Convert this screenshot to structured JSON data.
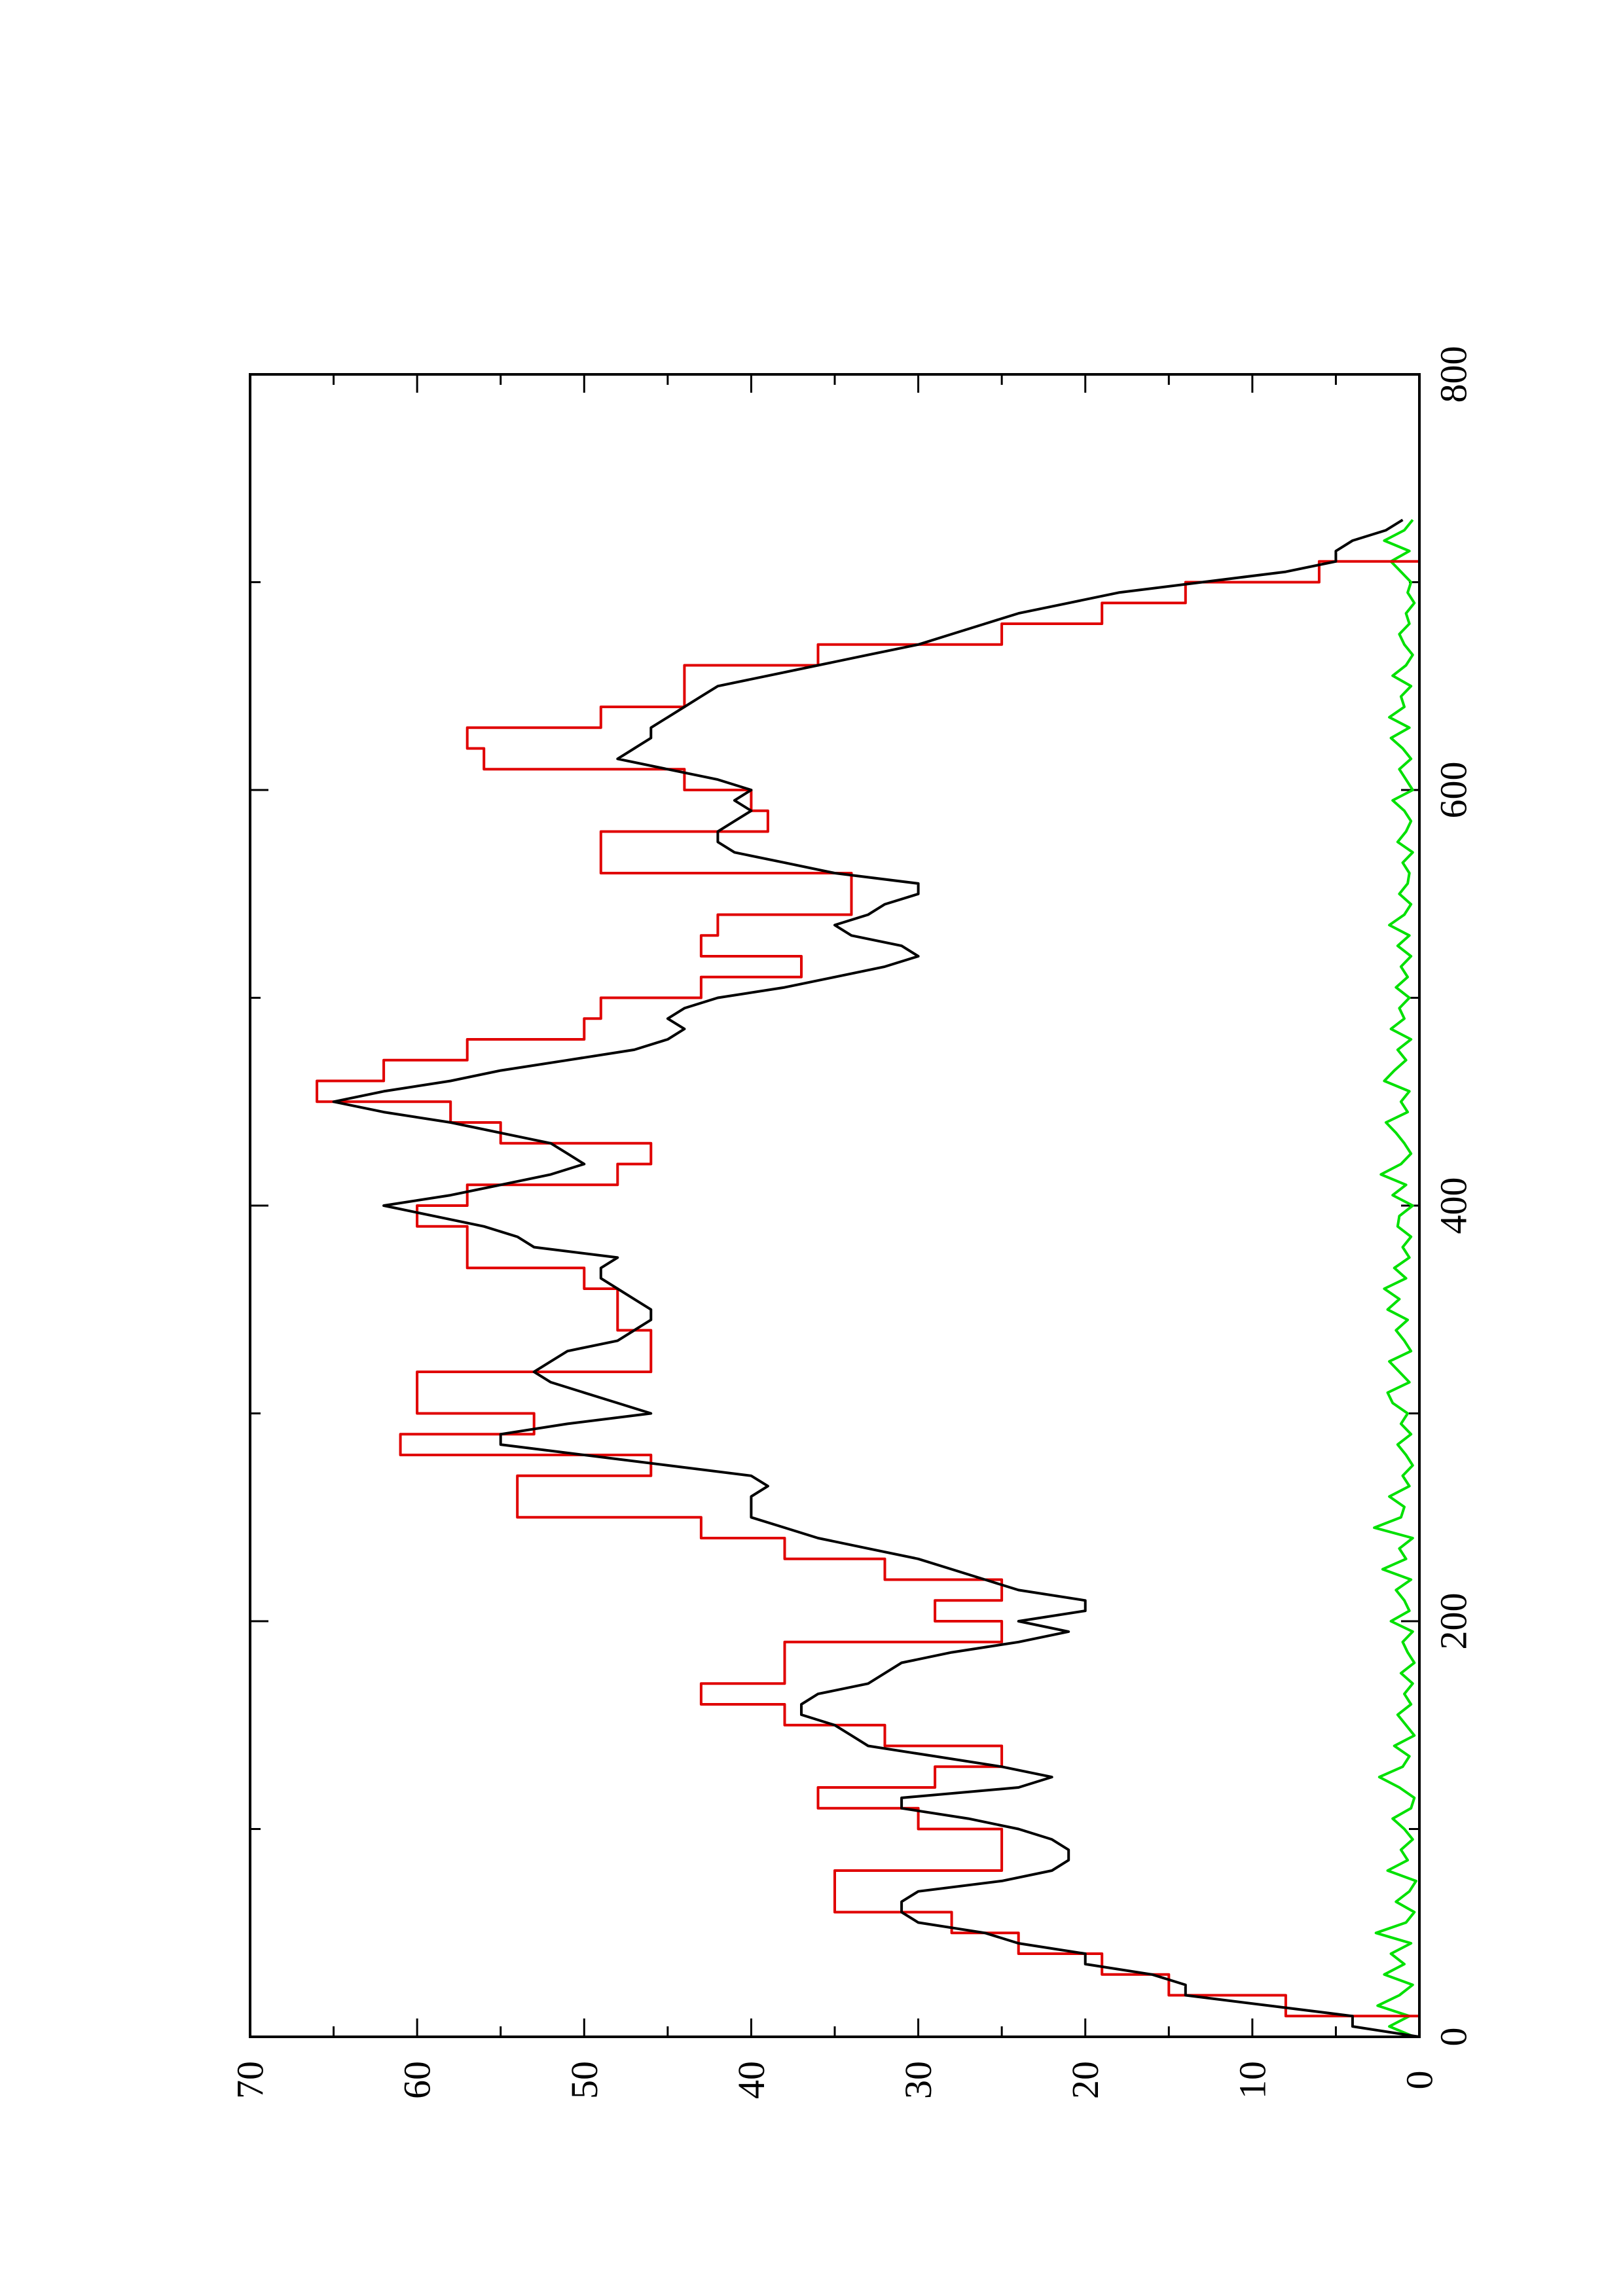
{
  "chart_data": {
    "type": "line",
    "orientation": "rotated-90-clockwise",
    "title": "",
    "xlabel": "",
    "ylabel": "",
    "xlim": [
      0,
      800
    ],
    "ylim": [
      0,
      70
    ],
    "xticks": [
      0,
      200,
      400,
      600,
      800
    ],
    "xtick_labels": [
      "0",
      "200",
      "400",
      "600",
      "800"
    ],
    "yticks": [
      0,
      10,
      20,
      30,
      40,
      50,
      60,
      70
    ],
    "ytick_labels": [
      "0",
      "10",
      "20",
      "30",
      "40",
      "50",
      "60",
      "70"
    ],
    "grid": false,
    "legend": "none",
    "series": [
      {
        "color": "#000000",
        "style": "line",
        "x": [
          0,
          5,
          10,
          15,
          20,
          25,
          30,
          35,
          40,
          45,
          50,
          55,
          60,
          65,
          70,
          75,
          80,
          85,
          90,
          95,
          100,
          105,
          110,
          115,
          120,
          125,
          130,
          135,
          140,
          145,
          150,
          155,
          160,
          165,
          170,
          175,
          180,
          185,
          190,
          195,
          200,
          205,
          210,
          215,
          220,
          225,
          230,
          235,
          240,
          245,
          250,
          255,
          260,
          265,
          270,
          275,
          280,
          285,
          290,
          295,
          300,
          305,
          310,
          315,
          320,
          325,
          330,
          335,
          340,
          345,
          350,
          355,
          360,
          365,
          370,
          375,
          380,
          385,
          390,
          395,
          400,
          405,
          410,
          415,
          420,
          425,
          430,
          435,
          440,
          445,
          450,
          455,
          460,
          465,
          470,
          475,
          480,
          485,
          490,
          495,
          500,
          505,
          510,
          515,
          520,
          525,
          530,
          535,
          540,
          545,
          550,
          555,
          560,
          565,
          570,
          575,
          580,
          585,
          590,
          595,
          600,
          605,
          610,
          615,
          620,
          625,
          630,
          635,
          640,
          645,
          650,
          655,
          660,
          665,
          670,
          675,
          680,
          685,
          690,
          695,
          700,
          705,
          710,
          715,
          720,
          725,
          730
        ],
        "y": [
          0,
          4,
          4,
          9,
          14,
          14,
          16,
          20,
          20,
          24,
          26,
          30,
          31,
          31,
          30,
          25,
          22,
          21,
          21,
          22,
          24,
          27,
          31,
          31,
          24,
          22,
          25,
          29,
          33,
          34,
          35,
          37,
          37,
          36,
          33,
          32,
          31,
          28,
          24,
          21,
          24,
          20,
          20,
          24,
          26,
          28,
          30,
          33,
          36,
          38,
          40,
          40,
          40,
          39,
          40,
          45,
          50,
          55,
          55,
          51,
          46,
          48,
          50,
          52,
          53,
          52,
          51,
          48,
          47,
          46,
          46,
          47,
          48,
          49,
          49,
          48,
          53,
          54,
          56,
          59,
          62,
          58,
          55,
          52,
          50,
          51,
          52,
          55,
          58,
          62,
          65,
          62,
          58,
          55,
          51,
          47,
          45,
          44,
          45,
          44,
          42,
          38,
          35,
          32,
          30,
          31,
          34,
          35,
          33,
          32,
          30,
          30,
          35,
          38,
          41,
          42,
          42,
          41,
          40,
          41,
          40,
          42,
          45,
          48,
          47,
          46,
          46,
          45,
          44,
          43,
          42,
          39,
          36,
          33,
          30,
          28,
          26,
          24,
          21,
          18,
          13,
          8,
          5,
          5,
          4,
          2,
          1
        ]
      },
      {
        "color": "#e00000",
        "style": "step",
        "x": [
          0,
          10,
          20,
          30,
          40,
          50,
          60,
          70,
          80,
          90,
          100,
          110,
          120,
          130,
          140,
          150,
          160,
          170,
          180,
          190,
          200,
          210,
          220,
          230,
          240,
          250,
          260,
          270,
          280,
          290,
          300,
          310,
          320,
          330,
          340,
          350,
          360,
          370,
          380,
          390,
          400,
          410,
          420,
          430,
          440,
          450,
          460,
          470,
          480,
          490,
          500,
          510,
          520,
          530,
          540,
          550,
          560,
          570,
          580,
          590,
          600,
          610,
          620,
          630,
          640,
          650,
          660,
          670,
          680,
          690,
          700,
          710
        ],
        "y": [
          0,
          8,
          15,
          19,
          24,
          28,
          35,
          35,
          25,
          25,
          30,
          36,
          29,
          25,
          32,
          38,
          43,
          38,
          38,
          25,
          29,
          25,
          32,
          38,
          43,
          54,
          54,
          46,
          61,
          53,
          60,
          60,
          46,
          46,
          48,
          48,
          50,
          57,
          57,
          60,
          57,
          48,
          46,
          55,
          58,
          66,
          62,
          57,
          50,
          49,
          43,
          37,
          43,
          42,
          34,
          34,
          49,
          49,
          39,
          40,
          44,
          56,
          57,
          49,
          44,
          44,
          36,
          25,
          19,
          14,
          6,
          0
        ]
      },
      {
        "color": "#00e000",
        "style": "line",
        "x": [
          0,
          5,
          10,
          15,
          20,
          25,
          30,
          35,
          40,
          45,
          50,
          55,
          60,
          65,
          70,
          75,
          80,
          85,
          90,
          95,
          100,
          105,
          110,
          115,
          120,
          125,
          130,
          135,
          140,
          145,
          150,
          155,
          160,
          165,
          170,
          175,
          180,
          185,
          190,
          195,
          200,
          205,
          210,
          215,
          220,
          225,
          230,
          235,
          240,
          245,
          250,
          255,
          260,
          265,
          270,
          275,
          280,
          285,
          290,
          295,
          300,
          305,
          310,
          315,
          320,
          325,
          330,
          335,
          340,
          345,
          350,
          355,
          360,
          365,
          370,
          375,
          380,
          385,
          390,
          395,
          400,
          405,
          410,
          415,
          420,
          425,
          430,
          435,
          440,
          445,
          450,
          455,
          460,
          465,
          470,
          475,
          480,
          485,
          490,
          495,
          500,
          505,
          510,
          515,
          520,
          525,
          530,
          535,
          540,
          545,
          550,
          555,
          560,
          565,
          570,
          575,
          580,
          585,
          590,
          595,
          600,
          605,
          610,
          615,
          620,
          625,
          630,
          635,
          640,
          645,
          650,
          655,
          660,
          665,
          670,
          675,
          680,
          685,
          690,
          695,
          700,
          705,
          710,
          715,
          720,
          725,
          730
        ],
        "y": [
          0.3,
          1.8,
          0.6,
          2.5,
          1.2,
          0.4,
          2.1,
          0.9,
          1.7,
          0.5,
          2.6,
          0.8,
          0.3,
          1.4,
          0.6,
          0.2,
          1.9,
          0.7,
          1.1,
          0.4,
          0.9,
          1.6,
          0.5,
          0.3,
          1.2,
          2.4,
          1.0,
          0.6,
          1.5,
          0.3,
          0.8,
          1.3,
          0.5,
          0.9,
          0.4,
          1.1,
          0.3,
          0.7,
          1.0,
          0.4,
          1.7,
          0.6,
          0.9,
          1.4,
          0.5,
          2.2,
          0.8,
          1.2,
          0.4,
          2.7,
          1.1,
          0.9,
          1.8,
          0.6,
          1.0,
          0.4,
          0.8,
          1.3,
          0.5,
          1.1,
          0.7,
          1.6,
          1.9,
          0.6,
          1.2,
          1.8,
          0.5,
          0.9,
          1.4,
          0.7,
          1.9,
          1.2,
          2.1,
          0.8,
          1.5,
          0.6,
          1.0,
          0.5,
          1.3,
          1.2,
          0.4,
          1.6,
          0.8,
          2.3,
          1.1,
          0.5,
          0.9,
          1.4,
          2.0,
          0.7,
          1.1,
          0.6,
          2.1,
          1.5,
          0.8,
          1.3,
          0.5,
          1.7,
          0.9,
          1.2,
          0.6,
          1.4,
          0.7,
          1.1,
          0.5,
          1.3,
          0.6,
          1.8,
          0.9,
          0.5,
          1.2,
          0.7,
          0.6,
          1.0,
          0.4,
          1.3,
          0.8,
          0.5,
          0.9,
          1.6,
          0.4,
          0.8,
          1.2,
          0.5,
          1.0,
          1.7,
          0.6,
          1.8,
          0.9,
          1.1,
          0.5,
          1.6,
          0.8,
          0.4,
          0.9,
          1.2,
          0.6,
          0.8,
          0.3,
          0.7,
          0.5,
          1.1,
          1.7,
          0.6,
          2.1,
          0.9,
          0.4
        ]
      }
    ]
  }
}
